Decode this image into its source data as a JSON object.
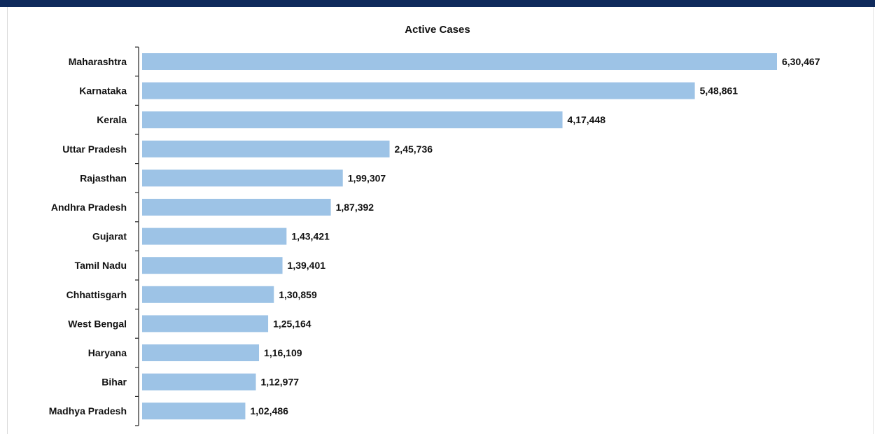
{
  "chart_data": {
    "type": "bar",
    "orientation": "horizontal",
    "title": "Active Cases",
    "xlabel": "",
    "ylabel": "",
    "categories": [
      "Maharashtra",
      "Karnataka",
      "Kerala",
      "Uttar Pradesh",
      "Rajasthan",
      "Andhra Pradesh",
      "Gujarat",
      "Tamil Nadu",
      "Chhattisgarh",
      "West Bengal",
      "Haryana",
      "Bihar",
      "Madhya Pradesh"
    ],
    "values": [
      630467,
      548861,
      417448,
      245736,
      199307,
      187392,
      143421,
      139401,
      130859,
      125164,
      116109,
      112977,
      102486
    ],
    "value_labels": [
      "6,30,467",
      "5,48,861",
      "4,17,448",
      "2,45,736",
      "1,99,307",
      "1,87,392",
      "1,43,421",
      "1,39,401",
      "1,30,859",
      "1,25,164",
      "1,16,109",
      "1,12,977",
      "1,02,486"
    ],
    "xlim": [
      0,
      630467
    ],
    "grid": false,
    "legend": "none",
    "bar_color": "#9dc3e6",
    "frame_color": "#0f2a5c"
  }
}
